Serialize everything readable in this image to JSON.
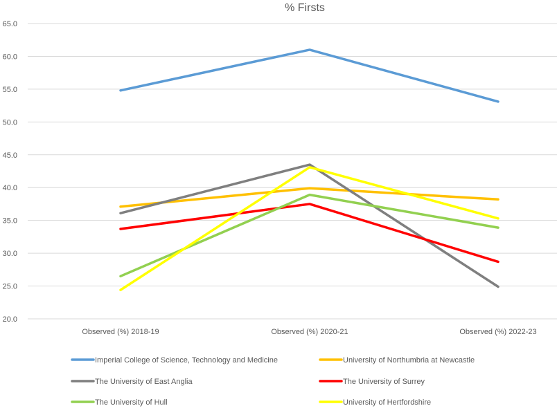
{
  "chart_data": {
    "type": "line",
    "title": "% Firsts",
    "xlabel": "",
    "ylabel": "",
    "categories": [
      "Observed (%) 2018-19",
      "Observed (%) 2020-21",
      "Observed (%) 2022-23"
    ],
    "ylim": [
      20,
      65
    ],
    "yticks": [
      "20.0",
      "25.0",
      "30.0",
      "35.0",
      "40.0",
      "45.0",
      "50.0",
      "55.0",
      "60.0",
      "65.0"
    ],
    "grid": true,
    "legend": "bottom",
    "series": [
      {
        "name": "Imperial College of Science, Technology and Medicine",
        "color": "#5b9bd5",
        "values": [
          54.8,
          61.0,
          53.1
        ]
      },
      {
        "name": "University of Northumbria at Newcastle",
        "color": "#ffc000",
        "values": [
          37.1,
          39.9,
          38.2
        ]
      },
      {
        "name": "The University of East Anglia",
        "color": "#7f7f7f",
        "values": [
          36.1,
          43.5,
          24.9
        ]
      },
      {
        "name": "The University of Surrey",
        "color": "#ff0000",
        "values": [
          33.7,
          37.5,
          28.7
        ]
      },
      {
        "name": "The University of Hull",
        "color": "#92d050",
        "values": [
          26.5,
          38.9,
          33.9
        ]
      },
      {
        "name": "University of Hertfordshire",
        "color": "#ffff00",
        "values": [
          24.4,
          43.1,
          35.3
        ]
      }
    ]
  }
}
